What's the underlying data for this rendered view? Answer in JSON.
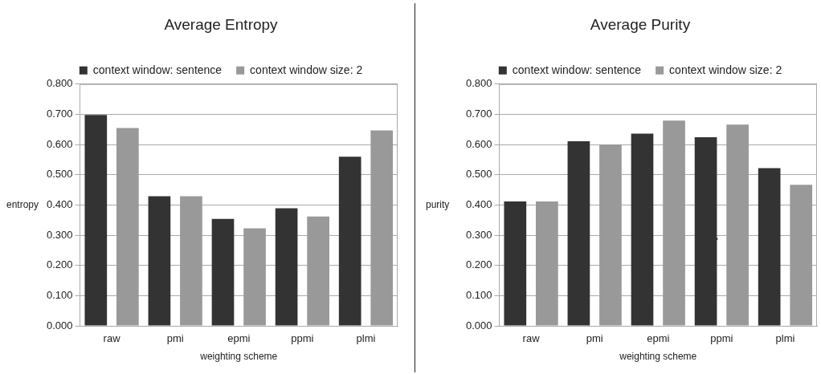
{
  "chart_data": [
    {
      "type": "bar",
      "title": "Average Entropy",
      "xlabel": "weighting scheme",
      "ylabel": "entropy",
      "categories": [
        "raw",
        "pmi",
        "epmi",
        "ppmi",
        "plmi"
      ],
      "series": [
        {
          "name": "context window: sentence",
          "color": "#333333",
          "values": [
            0.698,
            0.429,
            0.354,
            0.389,
            0.56
          ]
        },
        {
          "name": "context window size: 2",
          "color": "#999999",
          "values": [
            0.655,
            0.429,
            0.323,
            0.362,
            0.647
          ]
        }
      ],
      "ylim": [
        0,
        0.8
      ],
      "yticks": [
        {
          "value": 0,
          "label": "0.000"
        },
        {
          "value": 0.1,
          "label": "0.100"
        },
        {
          "value": 0.2,
          "label": "0.200"
        },
        {
          "value": 0.3,
          "label": "0.300"
        },
        {
          "value": 0.4,
          "label": "0.400"
        },
        {
          "value": 0.5,
          "label": "0.500"
        },
        {
          "value": 0.6,
          "label": "0.600"
        },
        {
          "value": 0.7,
          "label": "0.700"
        },
        {
          "value": 0.8,
          "label": "0.800"
        }
      ],
      "grid": "y",
      "legend": "top"
    },
    {
      "type": "bar",
      "title": "Average Purity",
      "xlabel": "weighting scheme",
      "ylabel": "purity",
      "categories": [
        "raw",
        "pmi",
        "epmi",
        "ppmi",
        "plmi"
      ],
      "series": [
        {
          "name": "context window: sentence",
          "color": "#333333",
          "values": [
            0.412,
            0.611,
            0.636,
            0.624,
            0.522
          ]
        },
        {
          "name": "context window size: 2",
          "color": "#999999",
          "values": [
            0.412,
            0.6,
            0.679,
            0.666,
            0.467
          ]
        }
      ],
      "ylim": [
        0,
        0.8
      ],
      "yticks": [
        {
          "value": 0,
          "label": "0.000"
        },
        {
          "value": 0.1,
          "label": "0.100"
        },
        {
          "value": 0.2,
          "label": "0.200"
        },
        {
          "value": 0.3,
          "label": "0.300"
        },
        {
          "value": 0.4,
          "label": "0.400"
        },
        {
          "value": 0.5,
          "label": "0.500"
        },
        {
          "value": 0.6,
          "label": "0.600"
        },
        {
          "value": 0.7,
          "label": "0.700"
        },
        {
          "value": 0.8,
          "label": "0.800"
        }
      ],
      "grid": "y",
      "legend": "top"
    }
  ]
}
